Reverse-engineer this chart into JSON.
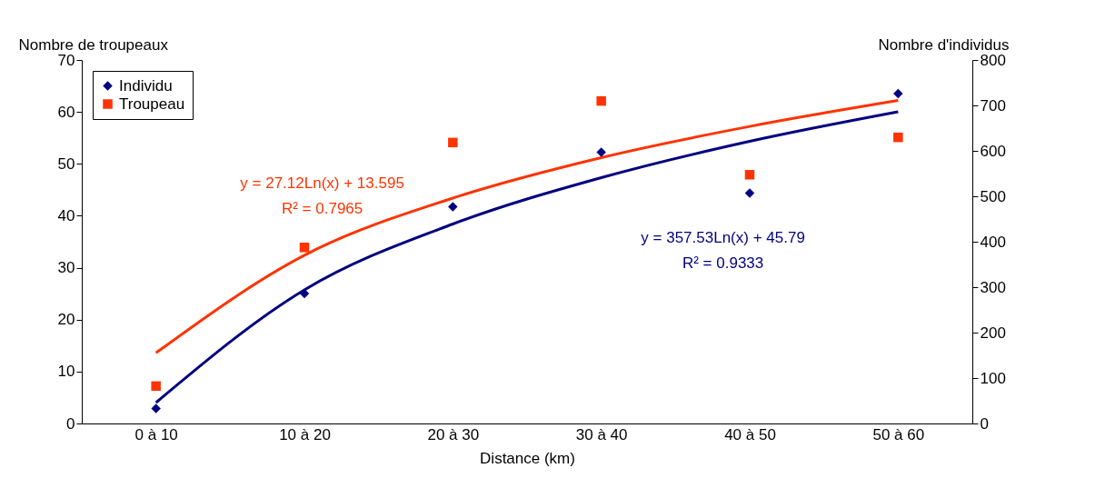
{
  "chart_data": {
    "type": "scatter",
    "xlabel": "Distance (km)",
    "ylabel": "Nombre de troupeaux",
    "y2label": "Nombre d'individus",
    "categories": [
      "0 à 10",
      "10 à 20",
      "20 à 30",
      "30 à 40",
      "40 à 50",
      "50 à 60"
    ],
    "ylim": [
      0,
      70
    ],
    "yticks": [
      0,
      10,
      20,
      30,
      40,
      50,
      60,
      70
    ],
    "y2lim": [
      0,
      800
    ],
    "y2ticks": [
      0,
      100,
      200,
      300,
      400,
      500,
      600,
      700,
      800
    ],
    "legend": "top left",
    "series": [
      {
        "name": "Individu",
        "marker": "diamond",
        "axis": "y2",
        "color": "#000080",
        "values": [
          33,
          286,
          477,
          597,
          507,
          726
        ]
      },
      {
        "name": "Troupeau",
        "marker": "square",
        "color": "#ff3300",
        "values": [
          7.2,
          33.9,
          54.1,
          62.1,
          47.9,
          55.1
        ]
      },
      {
        "type": "line",
        "marker": "none",
        "color": "#ff3300",
        "values": [
          13.6,
          32.4,
          43.4,
          51.2,
          57.2,
          62.2
        ]
      },
      {
        "type": "line",
        "marker": "none",
        "axis": "y2",
        "color": "#000080",
        "values": [
          46,
          294,
          439,
          541,
          621,
          686
        ]
      }
    ],
    "annotations": [
      "y = 27.12Ln(x) + 13.595",
      "R² = 0.7965",
      "y = 357.53Ln(x) + 45.79",
      "R² = 0.9333"
    ]
  }
}
